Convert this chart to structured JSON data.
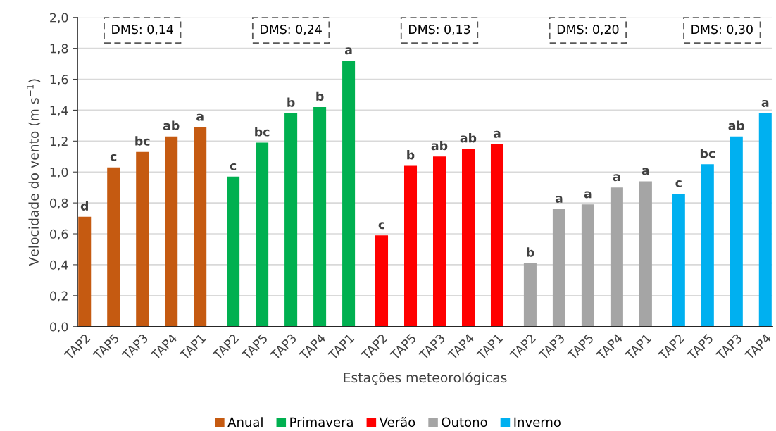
{
  "chart_data": {
    "type": "bar",
    "xlabel": "Estações meteorológicas",
    "ylabel": "Velocidade do vento (m s$^{−1}$)",
    "categories": [
      "TAP2",
      "TAP5",
      "TAP3",
      "TAP4",
      "TAP1",
      "TAP2",
      "TAP5",
      "TAP3",
      "TAP4",
      "TAP1",
      "TAP2",
      "TAP5",
      "TAP3",
      "TAP4",
      "TAP1",
      "TAP2",
      "TAP3",
      "TAP5",
      "TAP4",
      "TAP1",
      "TAP2",
      "TAP5",
      "TAP3",
      "TAP4"
    ],
    "series": [
      {
        "name": "Anual",
        "color": "#c55a11",
        "values": [
          0.71,
          1.03,
          1.13,
          1.23,
          1.29,
          null,
          null,
          null,
          null,
          null,
          null,
          null,
          null,
          null,
          null,
          null,
          null,
          null,
          null,
          null,
          null,
          null,
          null,
          null
        ],
        "value_labels": [
          "d",
          "c",
          "bc",
          "ab",
          "a",
          null,
          null,
          null,
          null,
          null,
          null,
          null,
          null,
          null,
          null,
          null,
          null,
          null,
          null,
          null,
          null,
          null,
          null,
          null
        ]
      },
      {
        "name": "Primavera",
        "color": "#00b050",
        "values": [
          null,
          null,
          null,
          null,
          null,
          0.97,
          1.19,
          1.38,
          1.42,
          1.72,
          null,
          null,
          null,
          null,
          null,
          null,
          null,
          null,
          null,
          null,
          null,
          null,
          null,
          null
        ],
        "value_labels": [
          null,
          null,
          null,
          null,
          null,
          "c",
          "bc",
          "b",
          "b",
          "a",
          null,
          null,
          null,
          null,
          null,
          null,
          null,
          null,
          null,
          null,
          null,
          null,
          null,
          null
        ]
      },
      {
        "name": "Verão",
        "color": "#ff0000",
        "values": [
          null,
          null,
          null,
          null,
          null,
          null,
          null,
          null,
          null,
          null,
          0.59,
          1.04,
          1.1,
          1.15,
          1.18,
          null,
          null,
          null,
          null,
          null,
          null,
          null,
          null,
          null
        ],
        "value_labels": [
          null,
          null,
          null,
          null,
          null,
          null,
          null,
          null,
          null,
          null,
          "c",
          "b",
          "ab",
          "ab",
          "a",
          null,
          null,
          null,
          null,
          null,
          null,
          null,
          null,
          null
        ]
      },
      {
        "name": "Outono",
        "color": "#a5a5a5",
        "values": [
          null,
          null,
          null,
          null,
          null,
          null,
          null,
          null,
          null,
          null,
          null,
          null,
          null,
          null,
          null,
          0.41,
          0.76,
          0.79,
          0.9,
          0.94,
          null,
          null,
          null,
          null
        ],
        "value_labels": [
          null,
          null,
          null,
          null,
          null,
          null,
          null,
          null,
          null,
          null,
          null,
          null,
          null,
          null,
          null,
          "b",
          "a",
          "a",
          "a",
          "a",
          null,
          null,
          null,
          null
        ]
      },
      {
        "name": "Inverno",
        "color": "#00b0f0",
        "values": [
          null,
          null,
          null,
          null,
          null,
          null,
          null,
          null,
          null,
          null,
          null,
          null,
          null,
          null,
          null,
          null,
          null,
          null,
          null,
          null,
          0.86,
          1.05,
          1.23,
          1.38
        ],
        "value_labels": [
          null,
          null,
          null,
          null,
          null,
          null,
          null,
          null,
          null,
          null,
          null,
          null,
          null,
          null,
          null,
          null,
          null,
          null,
          null,
          null,
          "c",
          "bc",
          "ab",
          "a"
        ]
      }
    ],
    "ylim": [
      0,
      2
    ],
    "yticks": [
      {
        "value": 0,
        "label": "0,0"
      },
      {
        "value": 0.2,
        "label": "0,2"
      },
      {
        "value": 0.4,
        "label": "0,4"
      },
      {
        "value": 0.6,
        "label": "0,6"
      },
      {
        "value": 0.8,
        "label": "0,8"
      },
      {
        "value": 1.0,
        "label": "1,0"
      },
      {
        "value": 1.2,
        "label": "1,2"
      },
      {
        "value": 1.4,
        "label": "1,4"
      },
      {
        "value": 1.6,
        "label": "1,6"
      },
      {
        "value": 1.8,
        "label": "1,8"
      },
      {
        "value": 2.0,
        "label": "2,0"
      }
    ],
    "grid": "y",
    "legend": "bottom",
    "annotations": [
      "DMS: 0,14",
      "DMS: 0,24",
      "DMS: 0,13",
      "DMS: 0,20",
      "DMS: 0,30"
    ]
  }
}
